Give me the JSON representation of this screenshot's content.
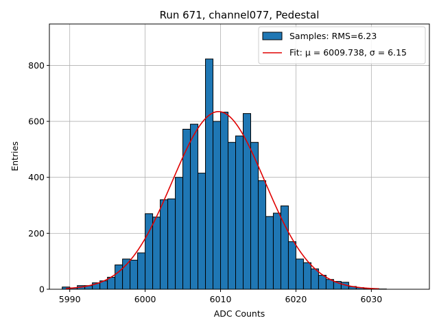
{
  "chart_data": {
    "type": "bar",
    "title": "Run 671, channel077, Pedestal",
    "xlabel": "ADC Counts",
    "ylabel": "Entries",
    "xlim": [
      5987.3,
      6037.7
    ],
    "ylim": [
      0,
      948
    ],
    "xticks": [
      5990,
      6000,
      6010,
      6020,
      6030
    ],
    "yticks": [
      0,
      200,
      400,
      600,
      800
    ],
    "grid": true,
    "legend_position": "top-right",
    "bin_edges_start": 5989,
    "bin_width": 1,
    "values": [
      8,
      5,
      13,
      13,
      23,
      30,
      43,
      87,
      108,
      104,
      130,
      270,
      258,
      320,
      323,
      400,
      572,
      590,
      415,
      823,
      600,
      633,
      525,
      548,
      628,
      525,
      388,
      260,
      272,
      298,
      170,
      108,
      95,
      73,
      50,
      35,
      28,
      25,
      10,
      6,
      3,
      2,
      1
    ],
    "series": [
      {
        "name": "Samples: RMS=6.23",
        "kind": "histogram",
        "color": "#1f77b4",
        "edgecolor": "#000000"
      },
      {
        "name": "Fit: μ = 6009.738, σ = 6.15",
        "kind": "gaussian-fit",
        "color": "#e00000",
        "mu": 6009.738,
        "sigma": 6.15,
        "amplitude": 635,
        "x_range": [
          5989.5,
          6031
        ]
      }
    ]
  }
}
